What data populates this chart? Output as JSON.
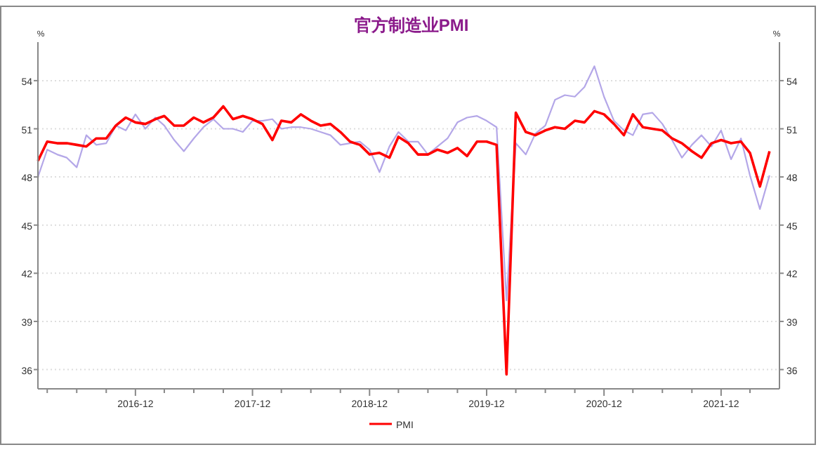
{
  "chart_data": {
    "type": "line",
    "title": "官方制造业PMI",
    "ylabel": "%",
    "y2label": "%",
    "xlim": [
      "2016-02",
      "2022-06"
    ],
    "xticks": [
      {
        "value": "2016-03",
        "label": null
      },
      {
        "value": "2016-06",
        "label": null
      },
      {
        "value": "2016-09",
        "label": null
      },
      "2016-12",
      {
        "value": "2017-03",
        "label": null
      },
      {
        "value": "2017-06",
        "label": null
      },
      {
        "value": "2017-09",
        "label": null
      },
      "2017-12",
      {
        "value": "2018-03",
        "label": null
      },
      {
        "value": "2018-06",
        "label": null
      },
      {
        "value": "2018-09",
        "label": null
      },
      "2018-12",
      {
        "value": "2019-03",
        "label": null
      },
      {
        "value": "2019-06",
        "label": null
      },
      {
        "value": "2019-09",
        "label": null
      },
      "2019-12",
      {
        "value": "2020-03",
        "label": null
      },
      {
        "value": "2020-06",
        "label": null
      },
      {
        "value": "2020-09",
        "label": null
      },
      "2020-12",
      {
        "value": "2021-03",
        "label": null
      },
      {
        "value": "2021-06",
        "label": null
      },
      {
        "value": "2021-09",
        "label": null
      },
      "2021-12",
      {
        "value": "2022-03",
        "label": null
      }
    ],
    "ylim": [
      34.8,
      56.4
    ],
    "yticks": [
      36,
      39,
      42,
      45,
      48,
      51,
      54
    ],
    "y2lim": [
      34.8,
      56.4
    ],
    "y2ticks": [
      36,
      39,
      42,
      45,
      48,
      51,
      54
    ],
    "grid": "y",
    "legend": "bottom",
    "line_style": "solid",
    "marker": "none",
    "x": [
      "2016-02",
      "2016-03",
      "2016-04",
      "2016-05",
      "2016-06",
      "2016-07",
      "2016-08",
      "2016-09",
      "2016-10",
      "2016-11",
      "2016-12",
      "2017-01",
      "2017-02",
      "2017-03",
      "2017-04",
      "2017-05",
      "2017-06",
      "2017-07",
      "2017-08",
      "2017-09",
      "2017-10",
      "2017-11",
      "2017-12",
      "2018-01",
      "2018-02",
      "2018-03",
      "2018-04",
      "2018-05",
      "2018-06",
      "2018-07",
      "2018-08",
      "2018-09",
      "2018-10",
      "2018-11",
      "2018-12",
      "2019-01",
      "2019-02",
      "2019-03",
      "2019-04",
      "2019-05",
      "2019-06",
      "2019-07",
      "2019-08",
      "2019-09",
      "2019-10",
      "2019-11",
      "2019-12",
      "2020-01",
      "2020-02",
      "2020-03",
      "2020-04",
      "2020-05",
      "2020-06",
      "2020-07",
      "2020-08",
      "2020-09",
      "2020-10",
      "2020-11",
      "2020-12",
      "2021-01",
      "2021-02",
      "2021-03",
      "2021-04",
      "2021-05",
      "2021-06",
      "2021-07",
      "2021-08",
      "2021-09",
      "2021-10",
      "2021-11",
      "2021-12",
      "2022-01",
      "2022-02",
      "2022-03",
      "2022-04",
      "2022-05"
    ],
    "series": [
      {
        "name": null,
        "color": "#b4a7e8",
        "values": [
          48.0,
          49.7,
          49.4,
          49.2,
          48.6,
          50.6,
          50.0,
          50.1,
          51.2,
          50.9,
          51.9,
          51.0,
          51.7,
          51.2,
          50.3,
          49.6,
          50.4,
          51.1,
          51.6,
          51.0,
          51.0,
          50.8,
          51.5,
          51.5,
          51.6,
          51.0,
          51.1,
          51.1,
          51.0,
          50.8,
          50.6,
          50.0,
          50.1,
          50.2,
          49.7,
          48.3,
          49.9,
          50.8,
          50.2,
          50.2,
          49.4,
          49.9,
          50.4,
          51.4,
          51.7,
          51.8,
          51.5,
          51.1,
          40.3,
          50.1,
          49.4,
          50.7,
          51.2,
          52.8,
          53.1,
          53.0,
          53.6,
          54.9,
          53.0,
          51.5,
          50.9,
          50.6,
          51.9,
          52.0,
          51.3,
          50.3,
          49.2,
          50.0,
          50.6,
          49.9,
          50.9,
          49.1,
          50.4,
          48.1,
          46.0,
          48.1
        ]
      },
      {
        "name": "PMI",
        "color": "#ff0000",
        "values": [
          49.0,
          50.2,
          50.1,
          50.1,
          50.0,
          49.9,
          50.4,
          50.4,
          51.2,
          51.7,
          51.4,
          51.3,
          51.6,
          51.8,
          51.2,
          51.2,
          51.7,
          51.4,
          51.7,
          52.4,
          51.6,
          51.8,
          51.6,
          51.3,
          50.3,
          51.5,
          51.4,
          51.9,
          51.5,
          51.2,
          51.3,
          50.8,
          50.2,
          50.0,
          49.4,
          49.5,
          49.2,
          50.5,
          50.1,
          49.4,
          49.4,
          49.7,
          49.5,
          49.8,
          49.3,
          50.2,
          50.2,
          50.0,
          35.7,
          52.0,
          50.8,
          50.6,
          50.9,
          51.1,
          51.0,
          51.5,
          51.4,
          52.1,
          51.9,
          51.3,
          50.6,
          51.9,
          51.1,
          51.0,
          50.9,
          50.4,
          50.1,
          49.6,
          49.2,
          50.1,
          50.3,
          50.1,
          50.2,
          49.5,
          47.4,
          49.6
        ]
      }
    ]
  }
}
